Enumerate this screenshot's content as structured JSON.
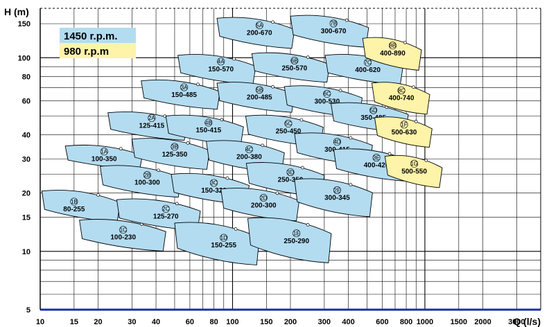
{
  "chart_data": {
    "type": "scatter",
    "title": "",
    "xlabel": "Q (l/s)",
    "ylabel": "H (m)",
    "x_scale": "log",
    "y_scale": "log",
    "xlim": [
      10,
      4000
    ],
    "ylim": [
      5,
      180
    ],
    "grid": true,
    "x_ticks": [
      10,
      15,
      20,
      30,
      40,
      60,
      80,
      100,
      150,
      200,
      300,
      400,
      600,
      800,
      1000,
      1500,
      2000,
      3000
    ],
    "x_tick_labels": [
      "10",
      "15",
      "20",
      "30",
      "40",
      "60",
      "80",
      "100",
      "150",
      "200",
      "300",
      "400",
      "600",
      "800",
      "1000",
      "1500",
      "2000",
      "3000"
    ],
    "y_ticks": [
      5,
      10,
      15,
      20,
      30,
      40,
      60,
      80,
      100,
      150
    ],
    "y_tick_labels": [
      "5",
      "10",
      "15",
      "20",
      "30",
      "40",
      "60",
      "80",
      "100",
      "150"
    ],
    "legend_position": "top-left",
    "legend": [
      {
        "label": "1450 r.p.m.",
        "color": "#b3dcf1"
      },
      {
        "label": "980 r.p.m",
        "color": "#fdf3a9"
      }
    ],
    "series": [
      {
        "name": "1450 r.p.m.",
        "color": "#b3dcf1",
        "pumps": [
          {
            "id": "1A",
            "model": "100-350",
            "q": 21.5,
            "h": 31.2,
            "q_min": 13.5,
            "q_max": 34,
            "h_min": 28,
            "h_max": 35
          },
          {
            "id": "1B",
            "model": "80-255",
            "q": 15,
            "h": 17.2,
            "q_min": 10.2,
            "q_max": 26,
            "h_min": 15.3,
            "h_max": 20.5
          },
          {
            "id": "1C",
            "model": "100-230",
            "q": 27,
            "h": 12.3,
            "q_min": 16,
            "q_max": 45,
            "h_min": 10.8,
            "h_max": 14.5
          },
          {
            "id": "2A",
            "model": "125-415",
            "q": 38,
            "h": 46.5,
            "q_min": 22.5,
            "q_max": 58,
            "h_min": 40,
            "h_max": 52
          },
          {
            "id": "2B",
            "model": "100-300",
            "q": 36,
            "h": 23.6,
            "q_min": 20.5,
            "q_max": 54,
            "h_min": 20.5,
            "h_max": 27.5
          },
          {
            "id": "2C",
            "model": "125-270",
            "q": 45,
            "h": 15.8,
            "q_min": 25,
            "q_max": 68,
            "h_min": 13.8,
            "h_max": 18.5
          },
          {
            "id": "3A",
            "model": "150-485",
            "q": 56,
            "h": 67,
            "q_min": 33.5,
            "q_max": 86,
            "h_min": 58,
            "h_max": 76
          },
          {
            "id": "3B",
            "model": "125-350",
            "q": 50,
            "h": 33,
            "q_min": 30,
            "q_max": 76,
            "h_min": 28.5,
            "h_max": 38
          },
          {
            "id": "3C",
            "model": "150-320",
            "q": 80,
            "h": 21.5,
            "q_min": 48,
            "q_max": 122,
            "h_min": 18.8,
            "h_max": 25
          },
          {
            "id": "1D",
            "model": "150-255",
            "q": 90,
            "h": 11.2,
            "q_min": 50,
            "q_max": 138,
            "h_min": 9.4,
            "h_max": 14
          },
          {
            "id": "4A",
            "model": "150-570",
            "q": 87,
            "h": 91,
            "q_min": 52,
            "q_max": 132,
            "h_min": 78,
            "h_max": 103
          },
          {
            "id": "4B",
            "model": "150-415",
            "q": 75,
            "h": 44,
            "q_min": 45,
            "q_max": 114,
            "h_min": 38,
            "h_max": 50
          },
          {
            "id": "4C",
            "model": "200-380",
            "q": 122,
            "h": 32,
            "q_min": 73,
            "q_max": 186,
            "h_min": 27.5,
            "h_max": 37
          },
          {
            "id": "2D",
            "model": "200-300",
            "q": 145,
            "h": 18,
            "q_min": 87,
            "q_max": 222,
            "h_min": 15.5,
            "h_max": 21
          },
          {
            "id": "1E",
            "model": "250-290",
            "q": 215,
            "h": 11.8,
            "q_min": 120,
            "q_max": 326,
            "h_min": 9.7,
            "h_max": 14.8
          },
          {
            "id": "5A",
            "model": "200-670",
            "q": 138,
            "h": 140,
            "q_min": 83,
            "q_max": 210,
            "h_min": 120,
            "h_max": 160
          },
          {
            "id": "5B",
            "model": "200-485",
            "q": 138,
            "h": 65,
            "q_min": 83,
            "q_max": 210,
            "h_min": 56,
            "h_max": 74
          },
          {
            "id": "5C",
            "model": "250-450",
            "q": 195,
            "h": 43.5,
            "q_min": 117,
            "q_max": 296,
            "h_min": 37.5,
            "h_max": 50
          },
          {
            "id": "3D",
            "model": "250-350",
            "q": 200,
            "h": 24.4,
            "q_min": 118,
            "q_max": 300,
            "h_min": 20.8,
            "h_max": 28.5
          },
          {
            "id": "6B",
            "model": "250-570",
            "q": 210,
            "h": 92,
            "q_min": 126,
            "q_max": 320,
            "h_min": 80,
            "h_max": 105
          },
          {
            "id": "6C",
            "model": "300-530",
            "q": 310,
            "h": 62,
            "q_min": 186,
            "q_max": 472,
            "h_min": 53,
            "h_max": 71
          },
          {
            "id": "4D",
            "model": "300-415",
            "q": 350,
            "h": 35,
            "q_min": 210,
            "q_max": 534,
            "h_min": 30,
            "h_max": 40.5
          },
          {
            "id": "2E",
            "model": "300-345",
            "q": 350,
            "h": 19.7,
            "q_min": 210,
            "q_max": 534,
            "h_min": 16.5,
            "h_max": 23.5
          },
          {
            "id": "7B",
            "model": "300-670",
            "q": 335,
            "h": 143,
            "q_min": 200,
            "q_max": 510,
            "h_min": 122,
            "h_max": 164
          },
          {
            "id": "7C",
            "model": "400-620",
            "q": 505,
            "h": 90,
            "q_min": 303,
            "q_max": 770,
            "h_min": 78,
            "h_max": 103
          },
          {
            "id": "5D",
            "model": "350-485",
            "q": 540,
            "h": 51,
            "q_min": 325,
            "q_max": 820,
            "h_min": 44,
            "h_max": 58
          },
          {
            "id": "3E",
            "model": "400-420",
            "q": 560,
            "h": 29,
            "q_min": 336,
            "q_max": 850,
            "h_min": 24.8,
            "h_max": 33.5
          }
        ]
      },
      {
        "name": "980 r.p.m",
        "color": "#fdf3a9",
        "pumps": [
          {
            "id": "8B",
            "model": "400-890",
            "q": 680,
            "h": 110,
            "q_min": 475,
            "q_max": 960,
            "h_min": 93,
            "h_max": 126
          },
          {
            "id": "8C",
            "model": "400-740",
            "q": 755,
            "h": 64.5,
            "q_min": 530,
            "q_max": 1060,
            "h_min": 55,
            "h_max": 74
          },
          {
            "id": "1F",
            "model": "500-630",
            "q": 780,
            "h": 43,
            "q_min": 548,
            "q_max": 1090,
            "h_min": 37,
            "h_max": 49
          },
          {
            "id": "1G",
            "model": "500-550",
            "q": 880,
            "h": 27,
            "q_min": 620,
            "q_max": 1230,
            "h_min": 23,
            "h_max": 31
          }
        ]
      }
    ]
  }
}
